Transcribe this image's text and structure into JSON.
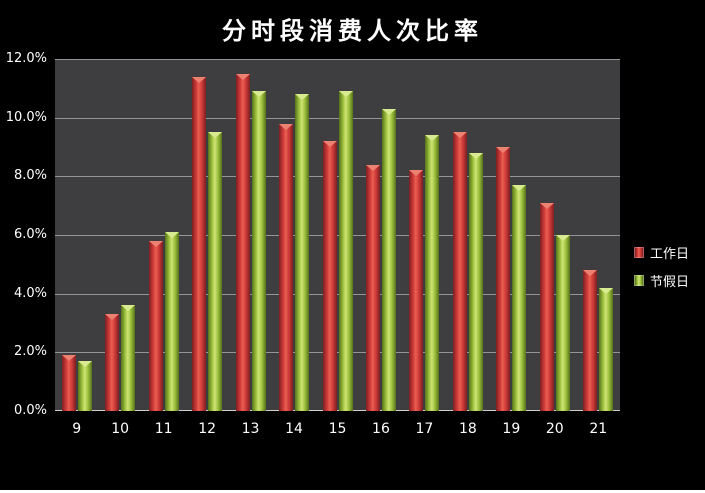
{
  "title": "分时段消费人次比率",
  "colors": {
    "background": "#000000",
    "plot_background": "#3e3e41",
    "gridline": "#bdbdbd",
    "axis_line": "#cfcfcf",
    "text": "#ffffff",
    "bottom_strip": "#ffffff"
  },
  "legend": {
    "position": "right"
  },
  "chart_data": {
    "type": "bar",
    "title": "分时段消费人次比率",
    "xlabel": "",
    "ylabel": "",
    "categories": [
      "9",
      "10",
      "11",
      "12",
      "13",
      "14",
      "15",
      "16",
      "17",
      "18",
      "19",
      "20",
      "21"
    ],
    "series": [
      {
        "name": "工作日",
        "color": "#cf3a3a",
        "color_dark": "#7c1f20",
        "color_highlight": "#e8604f",
        "color_notch": "#ee8272",
        "values": [
          1.9,
          3.3,
          5.8,
          11.4,
          11.5,
          9.8,
          9.2,
          8.4,
          8.2,
          9.5,
          9.0,
          7.1,
          4.8
        ]
      },
      {
        "name": "节假日",
        "color": "#9fc23f",
        "color_dark": "#55721a",
        "color_highlight": "#cfe476",
        "color_notch": "#d9eb90",
        "values": [
          1.7,
          3.6,
          6.1,
          9.5,
          10.9,
          10.8,
          10.9,
          10.3,
          9.4,
          8.8,
          7.7,
          6.0,
          4.2
        ]
      }
    ],
    "unit": "%",
    "ylim": [
      0,
      12
    ],
    "y_step": 2,
    "y_ticks": [
      "0.0%",
      "2.0%",
      "4.0%",
      "6.0%",
      "8.0%",
      "10.0%",
      "12.0%"
    ],
    "grid": true,
    "legend_position": "right"
  }
}
